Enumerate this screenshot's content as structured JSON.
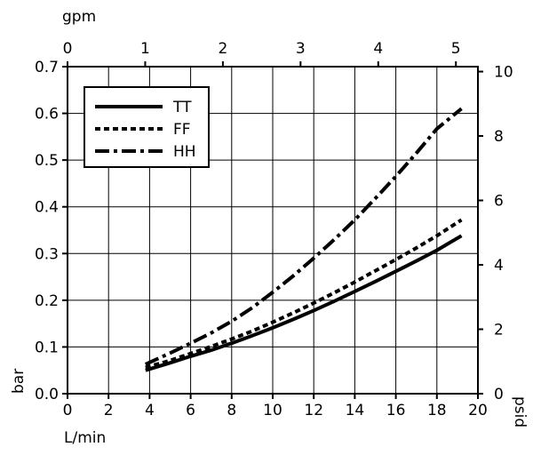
{
  "chart_data": {
    "type": "line",
    "xlabel": "L/min",
    "x2label": "gpm",
    "ylabel": "bar",
    "y2label": "psid",
    "xlim": [
      0,
      20
    ],
    "x2lim": [
      0,
      5.2834
    ],
    "ylim": [
      0,
      0.7
    ],
    "y2lim": [
      0,
      10.153
    ],
    "xticks": [
      "0",
      "2",
      "4",
      "6",
      "8",
      "10",
      "12",
      "14",
      "16",
      "18",
      "20"
    ],
    "x2ticks": [
      "0",
      "1",
      "2",
      "3",
      "4",
      "5"
    ],
    "yticks": [
      "0.0",
      "0.1",
      "0.2",
      "0.3",
      "0.4",
      "0.5",
      "0.6",
      "0.7"
    ],
    "y2ticks": [
      "0",
      "2",
      "4",
      "6",
      "8",
      "10"
    ],
    "grid": true,
    "legend_position": "top-left",
    "series": [
      {
        "name": "TT",
        "style": "solid",
        "x": [
          3.8,
          5,
          6,
          7,
          8,
          9,
          10,
          11,
          12,
          13,
          14,
          15,
          16,
          17,
          18,
          19.2
        ],
        "y": [
          0.05,
          0.066,
          0.08,
          0.093,
          0.108,
          0.124,
          0.141,
          0.159,
          0.178,
          0.198,
          0.219,
          0.24,
          0.262,
          0.284,
          0.307,
          0.338
        ]
      },
      {
        "name": "FF",
        "style": "dotted",
        "x": [
          3.8,
          5,
          6,
          7,
          8,
          9,
          10,
          11,
          12,
          13,
          14,
          15,
          16,
          17,
          18,
          19.2
        ],
        "y": [
          0.056,
          0.071,
          0.086,
          0.101,
          0.117,
          0.134,
          0.153,
          0.173,
          0.194,
          0.216,
          0.239,
          0.263,
          0.287,
          0.312,
          0.338,
          0.372
        ]
      },
      {
        "name": "HH",
        "style": "dash-dot",
        "x": [
          3.8,
          5,
          6,
          7,
          8,
          9,
          10,
          11,
          12,
          13,
          14,
          15,
          16,
          17,
          18,
          19.2
        ],
        "y": [
          0.063,
          0.087,
          0.108,
          0.13,
          0.155,
          0.184,
          0.217,
          0.252,
          0.29,
          0.33,
          0.372,
          0.418,
          0.465,
          0.515,
          0.567,
          0.61
        ]
      }
    ]
  }
}
